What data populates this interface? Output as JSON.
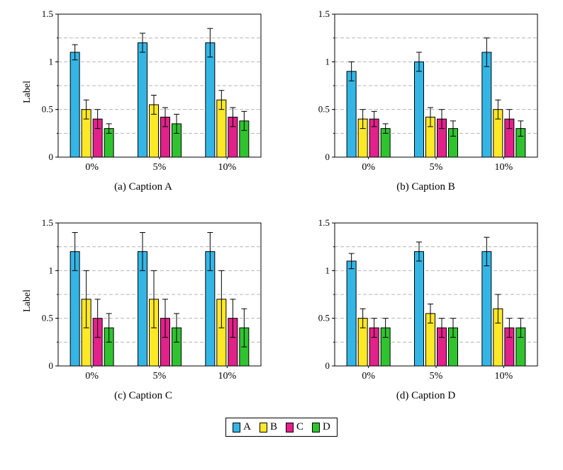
{
  "style": {
    "colors": {
      "A": "#33B6E6",
      "B": "#FFE926",
      "C": "#E2218A",
      "D": "#2FC42F"
    },
    "bar_stroke": "#000000",
    "grid_color": "#b5b5b5",
    "axis_color": "#000000",
    "background": "#ffffff"
  },
  "legend": {
    "items": [
      {
        "label": "A"
      },
      {
        "label": "B"
      },
      {
        "label": "C"
      },
      {
        "label": "D"
      }
    ]
  },
  "chart_data": [
    {
      "type": "bar",
      "caption": "(a) Caption A",
      "ylabel": "Label",
      "categories": [
        "0%",
        "5%",
        "10%"
      ],
      "ylim": [
        0,
        1.5
      ],
      "yticks": [
        0,
        0.5,
        1,
        1.5
      ],
      "ytick_labels": [
        "0",
        "0.5",
        "1",
        "1.5"
      ],
      "minor_gridlines": [
        0.25,
        0.5,
        0.75,
        1.0,
        1.25
      ],
      "grid_style": "dashed",
      "series": [
        {
          "name": "A",
          "values": [
            1.1,
            1.2,
            1.2
          ],
          "errors": [
            0.08,
            0.1,
            0.15
          ]
        },
        {
          "name": "B",
          "values": [
            0.5,
            0.55,
            0.6
          ],
          "errors": [
            0.1,
            0.1,
            0.1
          ]
        },
        {
          "name": "C",
          "values": [
            0.4,
            0.42,
            0.42
          ],
          "errors": [
            0.1,
            0.1,
            0.1
          ]
        },
        {
          "name": "D",
          "values": [
            0.3,
            0.35,
            0.38
          ],
          "errors": [
            0.05,
            0.1,
            0.1
          ]
        }
      ]
    },
    {
      "type": "bar",
      "caption": "(b) Caption B",
      "ylabel": "",
      "categories": [
        "0%",
        "5%",
        "10%"
      ],
      "ylim": [
        0,
        1.5
      ],
      "yticks": [
        0,
        0.5,
        1,
        1.5
      ],
      "ytick_labels": [
        "0",
        "0.5",
        "1",
        "1.5"
      ],
      "minor_gridlines": [
        0.25,
        0.5,
        0.75,
        1.0,
        1.25
      ],
      "grid_style": "dashed",
      "series": [
        {
          "name": "A",
          "values": [
            0.9,
            1.0,
            1.1
          ],
          "errors": [
            0.1,
            0.1,
            0.15
          ]
        },
        {
          "name": "B",
          "values": [
            0.4,
            0.42,
            0.5
          ],
          "errors": [
            0.1,
            0.1,
            0.1
          ]
        },
        {
          "name": "C",
          "values": [
            0.4,
            0.4,
            0.4
          ],
          "errors": [
            0.08,
            0.1,
            0.1
          ]
        },
        {
          "name": "D",
          "values": [
            0.3,
            0.3,
            0.3
          ],
          "errors": [
            0.05,
            0.08,
            0.08
          ]
        }
      ]
    },
    {
      "type": "bar",
      "caption": "(c) Caption C",
      "ylabel": "Label",
      "categories": [
        "0%",
        "5%",
        "10%"
      ],
      "ylim": [
        0,
        1.5
      ],
      "yticks": [
        0,
        0.5,
        1,
        1.5
      ],
      "ytick_labels": [
        "0",
        "0.5",
        "1",
        "1.5"
      ],
      "minor_gridlines": [
        0.25,
        0.5,
        0.75,
        1.0,
        1.25
      ],
      "grid_style": "dashed",
      "series": [
        {
          "name": "A",
          "values": [
            1.2,
            1.2,
            1.2
          ],
          "errors": [
            0.2,
            0.2,
            0.2
          ]
        },
        {
          "name": "B",
          "values": [
            0.7,
            0.7,
            0.7
          ],
          "errors": [
            0.3,
            0.3,
            0.3
          ]
        },
        {
          "name": "C",
          "values": [
            0.5,
            0.5,
            0.5
          ],
          "errors": [
            0.2,
            0.2,
            0.2
          ]
        },
        {
          "name": "D",
          "values": [
            0.4,
            0.4,
            0.4
          ],
          "errors": [
            0.15,
            0.15,
            0.2
          ]
        }
      ]
    },
    {
      "type": "bar",
      "caption": "(d) Caption D",
      "ylabel": "",
      "categories": [
        "0%",
        "5%",
        "10%"
      ],
      "ylim": [
        0,
        1.5
      ],
      "yticks": [
        0,
        0.5,
        1,
        1.5
      ],
      "ytick_labels": [
        "0",
        "0.5",
        "1",
        "1.5"
      ],
      "minor_gridlines": [
        0.25,
        0.5,
        0.75,
        1.0,
        1.25
      ],
      "grid_style": "dashed",
      "series": [
        {
          "name": "A",
          "values": [
            1.1,
            1.2,
            1.2
          ],
          "errors": [
            0.08,
            0.1,
            0.15
          ]
        },
        {
          "name": "B",
          "values": [
            0.5,
            0.55,
            0.6
          ],
          "errors": [
            0.1,
            0.1,
            0.15
          ]
        },
        {
          "name": "C",
          "values": [
            0.4,
            0.4,
            0.4
          ],
          "errors": [
            0.1,
            0.1,
            0.1
          ]
        },
        {
          "name": "D",
          "values": [
            0.4,
            0.4,
            0.4
          ],
          "errors": [
            0.1,
            0.1,
            0.1
          ]
        }
      ]
    }
  ]
}
